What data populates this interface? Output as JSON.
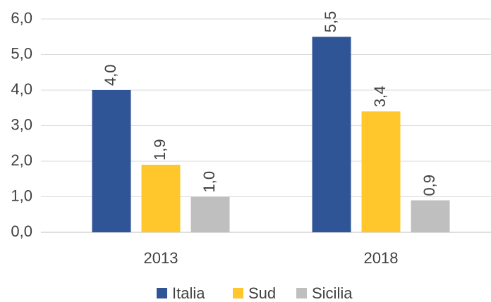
{
  "chart_data": {
    "type": "bar",
    "categories": [
      "2013",
      "2018"
    ],
    "series": [
      {
        "name": "Italia",
        "color": "#2f5597",
        "values": [
          4.0,
          5.5
        ],
        "value_labels": [
          "4,0",
          "5,5"
        ]
      },
      {
        "name": "Sud",
        "color": "#ffc72c",
        "values": [
          1.9,
          3.4
        ],
        "value_labels": [
          "1,9",
          "3,4"
        ]
      },
      {
        "name": "Sicilia",
        "color": "#bfbfbf",
        "values": [
          1.0,
          0.9
        ],
        "value_labels": [
          "1,0",
          "0,9"
        ]
      }
    ],
    "ylim": [
      0,
      6
    ],
    "yticks": [
      {
        "value": 0,
        "label": "0,0"
      },
      {
        "value": 1,
        "label": "1,0"
      },
      {
        "value": 2,
        "label": "2,0"
      },
      {
        "value": 3,
        "label": "3,0"
      },
      {
        "value": 4,
        "label": "4,0"
      },
      {
        "value": 5,
        "label": "5,0"
      },
      {
        "value": 6,
        "label": "6,0"
      }
    ],
    "grid": true,
    "legend": "bottom"
  }
}
